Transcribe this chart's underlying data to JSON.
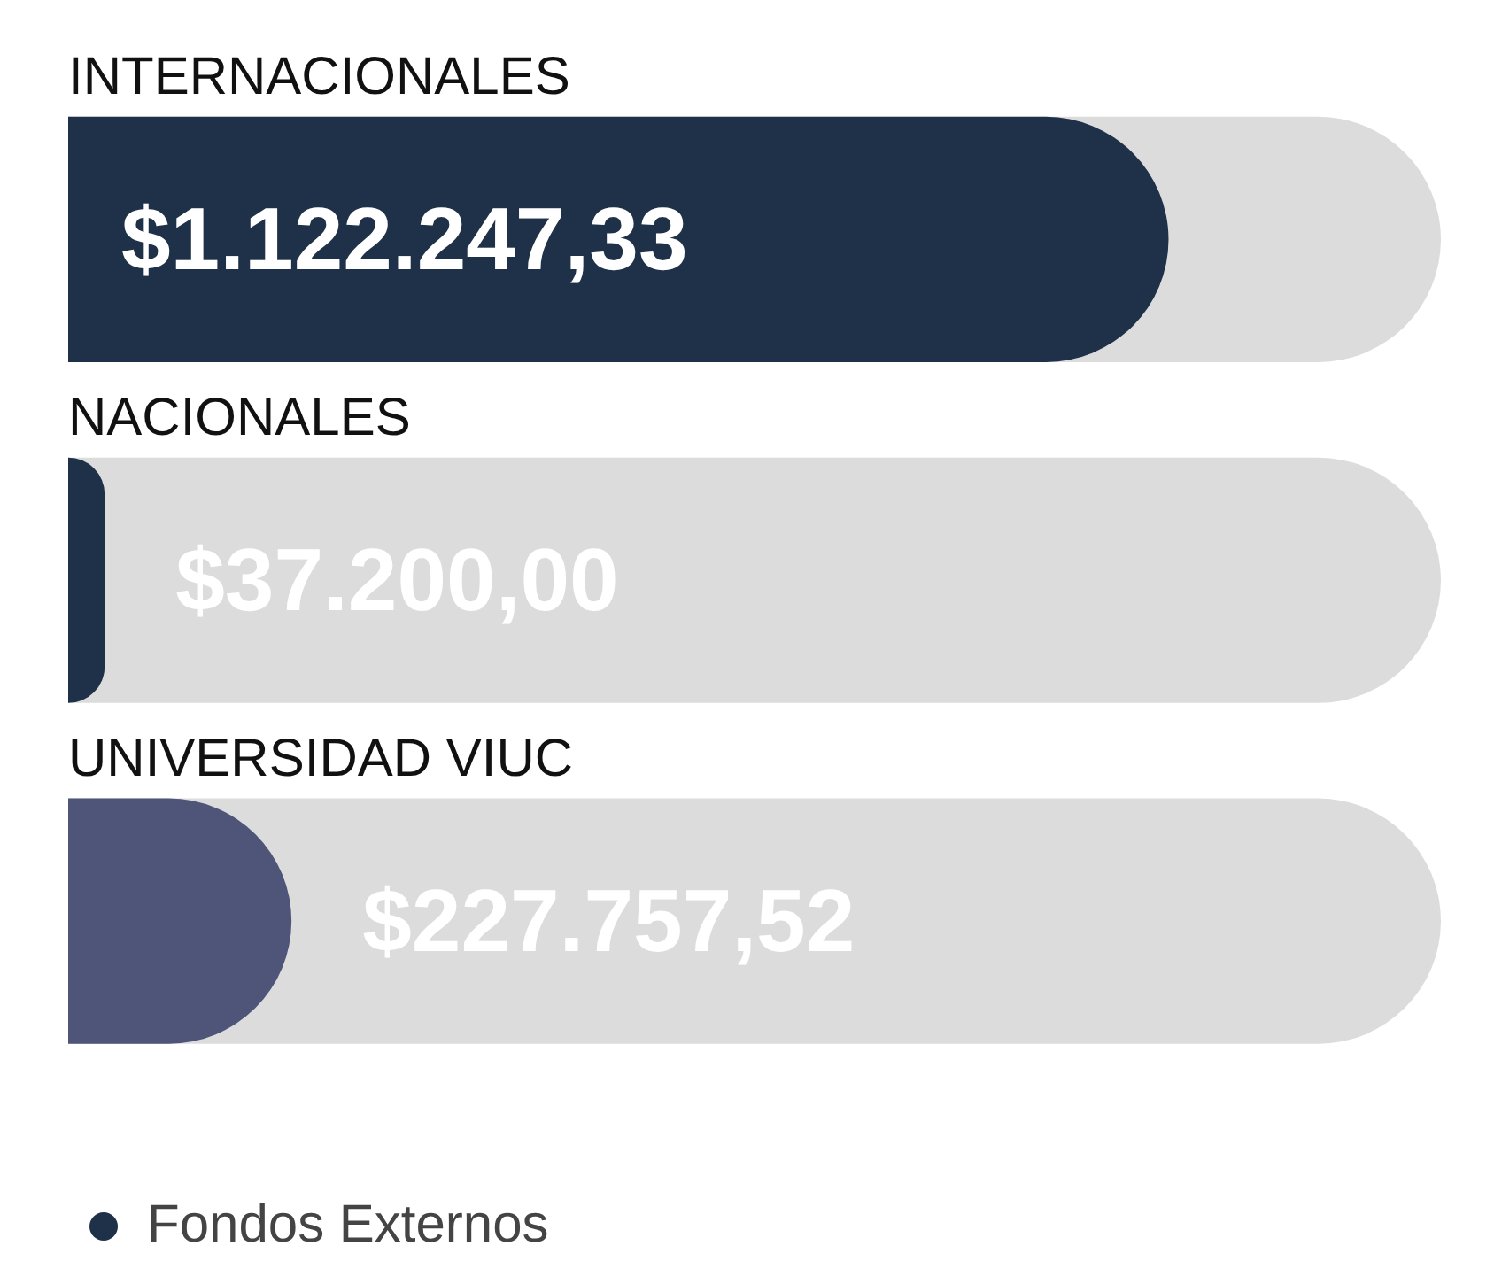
{
  "chart_data": {
    "type": "bar",
    "orientation": "horizontal",
    "categories": [
      "INTERNACIONALES",
      "NACIONALES",
      "UNIVERSIDAD VIUC"
    ],
    "series": [
      {
        "name": "Fondos Externos",
        "color": "#1f3149",
        "colors": [
          "#1f3149",
          "#1f3149",
          "#4e5578"
        ],
        "values": [
          1122247.33,
          37200.0,
          227757.52
        ],
        "value_labels": [
          "$1.122.247,33",
          "$37.200,00",
          "$227.757,52"
        ]
      }
    ],
    "xlim": [
      0,
      1400000
    ],
    "tick_labels": false,
    "grid": false,
    "legend": "bottom left"
  }
}
